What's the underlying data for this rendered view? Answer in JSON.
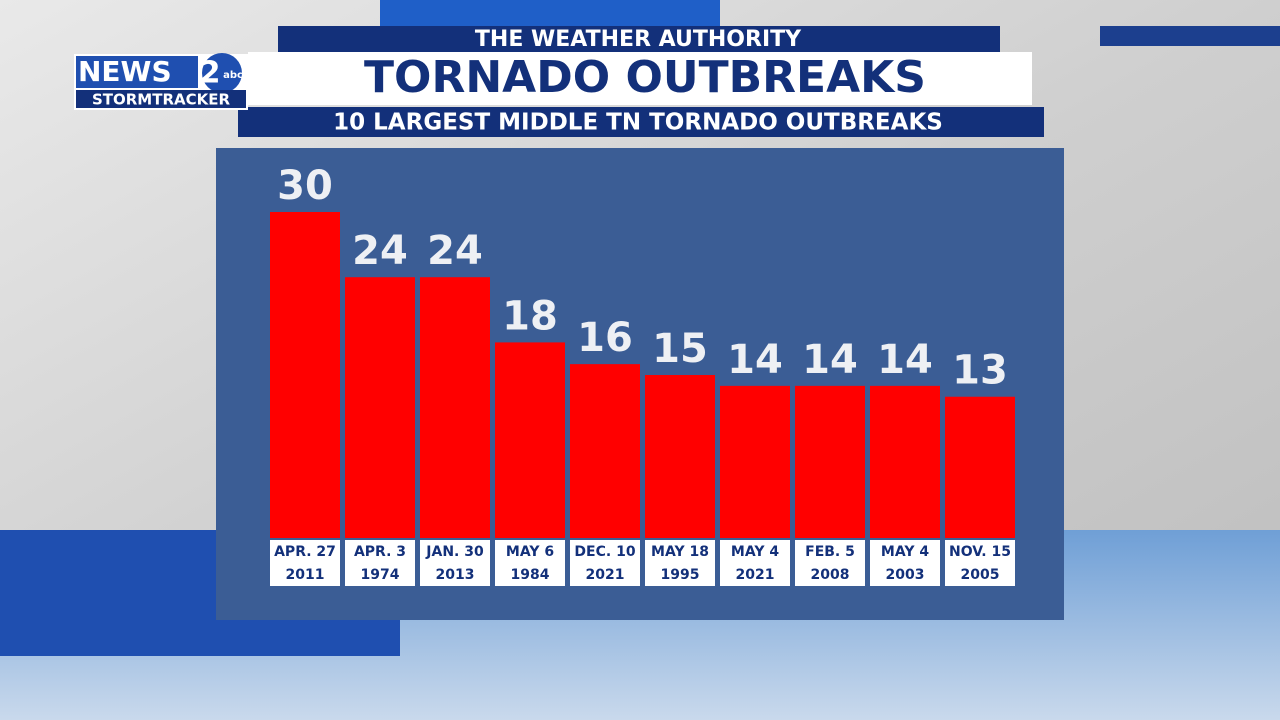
{
  "logo": {
    "brand": "NEWS",
    "channel": "2",
    "network": "abc",
    "subbrand": "STORMTRACKER"
  },
  "chart_data": {
    "type": "bar",
    "kicker": "THE WEATHER AUTHORITY",
    "title": "TORNADO OUTBREAKS",
    "subtitle": "10 LARGEST MIDDLE TN TORNADO OUTBREAKS",
    "categories": [
      [
        "APR. 27",
        "2011"
      ],
      [
        "APR. 3",
        "1974"
      ],
      [
        "JAN. 30",
        "2013"
      ],
      [
        "MAY 6",
        "1984"
      ],
      [
        "DEC. 10",
        "2021"
      ],
      [
        "MAY 18",
        "1995"
      ],
      [
        "MAY 4",
        "2021"
      ],
      [
        "FEB. 5",
        "2008"
      ],
      [
        "MAY 4",
        "2003"
      ],
      [
        "NOV. 15",
        "2005"
      ]
    ],
    "values": [
      30,
      24,
      24,
      18,
      16,
      15,
      14,
      14,
      14,
      13
    ],
    "color": "#ff0000"
  }
}
